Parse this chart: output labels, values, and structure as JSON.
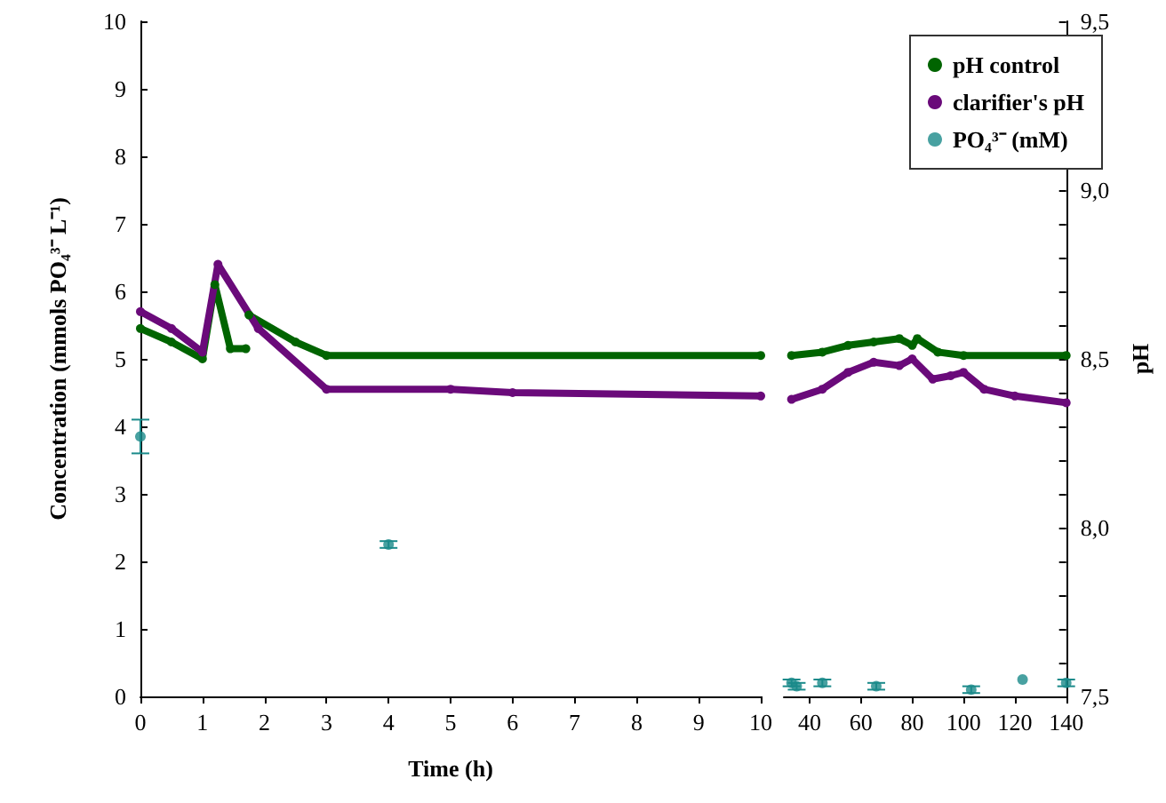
{
  "chart_data": [
    {
      "type": "line",
      "xlabel": "Time (h)",
      "ylabel": "Concentration (mmols PO₄³⁻ L⁻¹)",
      "xlim": [
        0,
        10
      ],
      "xticks": [
        0,
        1,
        2,
        3,
        4,
        5,
        6,
        7,
        8,
        9,
        10
      ],
      "ylim": [
        0,
        10
      ],
      "yticks": [
        0,
        1,
        2,
        3,
        4,
        5,
        6,
        7,
        8,
        9,
        10
      ],
      "y2lim": [
        7.5,
        9.5
      ],
      "tick_labels": [
        "x",
        "y"
      ],
      "grid": false,
      "legend": false,
      "marker": "circle",
      "series": [
        {
          "color": "#006400",
          "axis": "y2",
          "x": [
            0,
            0.5,
            1.0,
            1.2,
            1.45,
            1.7,
            1.72,
            1.75,
            2.5,
            3.0,
            10
          ],
          "values": [
            8.59,
            8.55,
            8.5,
            8.72,
            8.53,
            8.53,
            null,
            8.63,
            8.55,
            8.51,
            8.51
          ]
        },
        {
          "color": "#6a0a7a",
          "axis": "y2",
          "x": [
            0,
            0.5,
            1.0,
            1.25,
            1.9,
            3.0,
            5,
            6,
            10
          ],
          "values": [
            8.64,
            8.59,
            8.52,
            8.78,
            8.59,
            8.41,
            8.41,
            8.4,
            8.39
          ]
        },
        {
          "type": "scatter",
          "color": "#1a8a8a",
          "x": [
            0,
            4
          ],
          "values": [
            3.85,
            2.25
          ],
          "errors": [
            [
              3.6,
              4.1
            ],
            0.05
          ]
        }
      ]
    },
    {
      "type": "line",
      "xlim": [
        30,
        140
      ],
      "xticks": [
        40,
        60,
        80,
        100,
        120,
        140
      ],
      "ylim": [
        0,
        10
      ],
      "y2label": "pH",
      "y2lim": [
        7.5,
        9.5
      ],
      "y2ticks": [
        {
          "value": 7.5,
          "label": "7,5"
        },
        {
          "value": 7.6,
          "label": null
        },
        {
          "value": 7.7,
          "label": null
        },
        {
          "value": 7.8,
          "label": null
        },
        {
          "value": 7.9,
          "label": null
        },
        {
          "value": 8.0,
          "label": "8,0"
        },
        {
          "value": 8.1,
          "label": null
        },
        {
          "value": 8.2,
          "label": null
        },
        {
          "value": 8.3,
          "label": null
        },
        {
          "value": 8.4,
          "label": null
        },
        {
          "value": 8.5,
          "label": "8,5"
        },
        {
          "value": 8.6,
          "label": null
        },
        {
          "value": 8.7,
          "label": null
        },
        {
          "value": 8.8,
          "label": null
        },
        {
          "value": 8.9,
          "label": null
        },
        {
          "value": 9.0,
          "label": "9,0"
        },
        {
          "value": 9.1,
          "label": null
        },
        {
          "value": 9.2,
          "label": null
        },
        {
          "value": 9.3,
          "label": null
        },
        {
          "value": 9.4,
          "label": null
        },
        {
          "value": 9.5,
          "label": "9,5"
        }
      ],
      "tick_labels": [
        "x",
        "y2"
      ],
      "grid": false,
      "legend": "top right",
      "marker": "circle",
      "series": [
        {
          "name": "pH control",
          "color": "#006400",
          "axis": "y2",
          "x": [
            33,
            45,
            55,
            65,
            75,
            80,
            82,
            90,
            100,
            140
          ],
          "values": [
            8.51,
            8.52,
            8.54,
            8.55,
            8.56,
            8.54,
            8.56,
            8.52,
            8.51,
            8.51
          ]
        },
        {
          "name": "clarifier's pH",
          "color": "#6a0a7a",
          "axis": "y2",
          "x": [
            33,
            45,
            55,
            65,
            75,
            80,
            88,
            95,
            100,
            108,
            120,
            140
          ],
          "values": [
            8.38,
            8.41,
            8.46,
            8.49,
            8.48,
            8.5,
            8.44,
            8.45,
            8.46,
            8.41,
            8.39,
            8.37
          ]
        },
        {
          "name": "PO₄³⁻ (mM)",
          "type": "scatter",
          "color": "#1a8a8a",
          "x": [
            33,
            35,
            45,
            66,
            103,
            123,
            140
          ],
          "values": [
            0.2,
            0.15,
            0.2,
            0.15,
            0.1,
            0.25,
            0.2
          ],
          "errors": [
            0.05,
            0.05,
            0.05,
            0.05,
            0.05,
            null,
            0.05
          ]
        }
      ]
    }
  ]
}
